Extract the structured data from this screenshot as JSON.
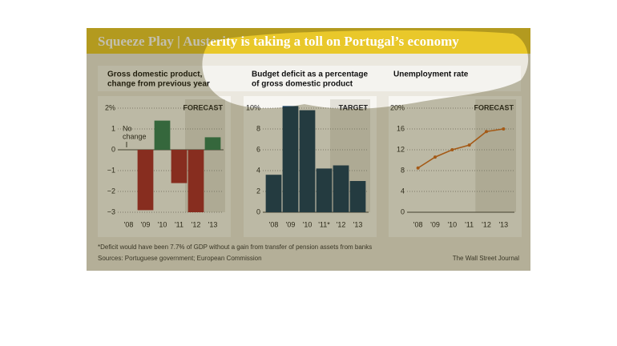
{
  "title": "Squeeze Play | Austerity is taking a toll on Portugal’s economy",
  "footnote": "*Deficit would have been 7.7% of GDP without a gain from transfer of pension assets from banks",
  "sources": "Sources: Portuguese government; European Commission",
  "credit": "The Wall Street Journal",
  "chart_data": [
    {
      "type": "bar",
      "title": [
        "Gross domestic product,",
        "change from previous year"
      ],
      "categories": [
        "'08",
        "'09",
        "'10",
        "'11",
        "'12",
        "'13"
      ],
      "values": [
        0,
        -2.9,
        1.4,
        -1.6,
        -3.0,
        0.6
      ],
      "color_positive": "#2e7d55",
      "color_negative": "#a8262a",
      "ylim": [
        -3,
        2
      ],
      "yticks": [
        {
          "value": -3,
          "label": "−3"
        },
        {
          "value": -2,
          "label": "−2"
        },
        {
          "value": -1,
          "label": "−1"
        },
        0,
        1,
        {
          "value": 2,
          "label": "2%"
        }
      ],
      "shade_label": "FORECAST",
      "shaded_from": "'12",
      "annotation": [
        "No",
        "change"
      ],
      "grid": true
    },
    {
      "type": "bar",
      "title": [
        "Budget deficit as a percentage",
        "of gross domestic product"
      ],
      "categories": [
        "'08",
        "'09",
        "'10",
        "'11*",
        "'12",
        "'13"
      ],
      "values": [
        3.6,
        10.2,
        9.8,
        4.2,
        4.5,
        3.0
      ],
      "color": "#143b5c",
      "ylim": [
        0,
        10
      ],
      "yticks": [
        0,
        2,
        4,
        6,
        8,
        {
          "value": 10,
          "label": "10%"
        }
      ],
      "shade_label": "TARGET",
      "shaded_from": "'12",
      "grid": true
    },
    {
      "type": "line",
      "title": [
        "Unemployment rate"
      ],
      "categories": [
        "'08",
        "'09",
        "'10",
        "'11",
        "'12",
        "'13"
      ],
      "values": [
        8.5,
        10.6,
        12.0,
        12.9,
        15.5,
        16.0
      ],
      "color": "#d2691e",
      "ylim": [
        0,
        20
      ],
      "yticks": [
        0,
        4,
        8,
        12,
        16,
        {
          "value": 20,
          "label": "20%"
        }
      ],
      "shade_label": "FORECAST",
      "shaded_from": "'12",
      "grid": true
    }
  ]
}
